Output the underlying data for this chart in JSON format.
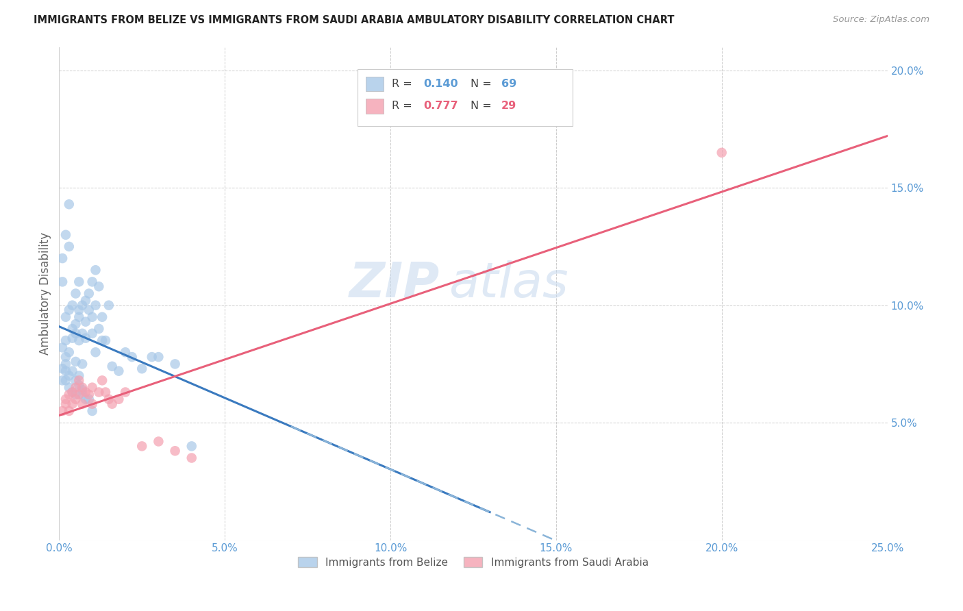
{
  "title": "IMMIGRANTS FROM BELIZE VS IMMIGRANTS FROM SAUDI ARABIA AMBULATORY DISABILITY CORRELATION CHART",
  "source": "Source: ZipAtlas.com",
  "ylabel": "Ambulatory Disability",
  "xlim": [
    0.0,
    0.25
  ],
  "ylim": [
    0.0,
    0.21
  ],
  "xticks": [
    0.0,
    0.05,
    0.1,
    0.15,
    0.2,
    0.25
  ],
  "yticks": [
    0.05,
    0.1,
    0.15,
    0.2
  ],
  "ytick_labels": [
    "5.0%",
    "10.0%",
    "15.0%",
    "20.0%"
  ],
  "xtick_labels": [
    "0.0%",
    "5.0%",
    "10.0%",
    "15.0%",
    "20.0%",
    "25.0%"
  ],
  "belize_R": "0.140",
  "belize_N": "69",
  "saudi_R": "0.777",
  "saudi_N": "29",
  "belize_color": "#a8c8e8",
  "saudi_color": "#f4a0b0",
  "belize_line_color": "#3a7abf",
  "belize_line_color_dashed": "#8ab4d8",
  "saudi_line_color": "#e8607a",
  "belize_x": [
    0.001,
    0.001,
    0.001,
    0.002,
    0.002,
    0.002,
    0.002,
    0.003,
    0.003,
    0.003,
    0.003,
    0.004,
    0.004,
    0.004,
    0.005,
    0.005,
    0.005,
    0.005,
    0.006,
    0.006,
    0.006,
    0.006,
    0.007,
    0.007,
    0.007,
    0.008,
    0.008,
    0.008,
    0.009,
    0.009,
    0.01,
    0.01,
    0.01,
    0.011,
    0.011,
    0.012,
    0.012,
    0.013,
    0.014,
    0.015,
    0.001,
    0.001,
    0.002,
    0.002,
    0.002,
    0.003,
    0.003,
    0.004,
    0.004,
    0.005,
    0.005,
    0.006,
    0.006,
    0.007,
    0.007,
    0.008,
    0.009,
    0.01,
    0.011,
    0.013,
    0.016,
    0.018,
    0.02,
    0.022,
    0.025,
    0.028,
    0.03,
    0.035,
    0.04
  ],
  "belize_y": [
    0.082,
    0.12,
    0.11,
    0.078,
    0.085,
    0.095,
    0.13,
    0.08,
    0.098,
    0.125,
    0.143,
    0.09,
    0.086,
    0.1,
    0.088,
    0.092,
    0.076,
    0.105,
    0.095,
    0.085,
    0.098,
    0.11,
    0.1,
    0.088,
    0.075,
    0.093,
    0.086,
    0.102,
    0.105,
    0.098,
    0.11,
    0.095,
    0.088,
    0.115,
    0.1,
    0.108,
    0.09,
    0.095,
    0.085,
    0.1,
    0.073,
    0.068,
    0.072,
    0.068,
    0.075,
    0.07,
    0.065,
    0.072,
    0.063,
    0.068,
    0.062,
    0.07,
    0.066,
    0.064,
    0.062,
    0.06,
    0.06,
    0.055,
    0.08,
    0.085,
    0.074,
    0.072,
    0.08,
    0.078,
    0.073,
    0.078,
    0.078,
    0.075,
    0.04
  ],
  "saudi_x": [
    0.001,
    0.002,
    0.002,
    0.003,
    0.003,
    0.004,
    0.004,
    0.005,
    0.005,
    0.006,
    0.006,
    0.007,
    0.007,
    0.008,
    0.009,
    0.01,
    0.01,
    0.012,
    0.013,
    0.014,
    0.015,
    0.016,
    0.018,
    0.02,
    0.025,
    0.03,
    0.035,
    0.04,
    0.2
  ],
  "saudi_y": [
    0.055,
    0.058,
    0.06,
    0.055,
    0.062,
    0.058,
    0.063,
    0.06,
    0.065,
    0.062,
    0.068,
    0.058,
    0.065,
    0.063,
    0.062,
    0.058,
    0.065,
    0.063,
    0.068,
    0.063,
    0.06,
    0.058,
    0.06,
    0.063,
    0.04,
    0.042,
    0.038,
    0.035,
    0.165
  ],
  "watermark_line1": "ZIP",
  "watermark_line2": "atlas",
  "belize_line_x_solid_end": 0.13,
  "saudi_line_x_start": 0.0,
  "saudi_line_x_end": 0.25
}
